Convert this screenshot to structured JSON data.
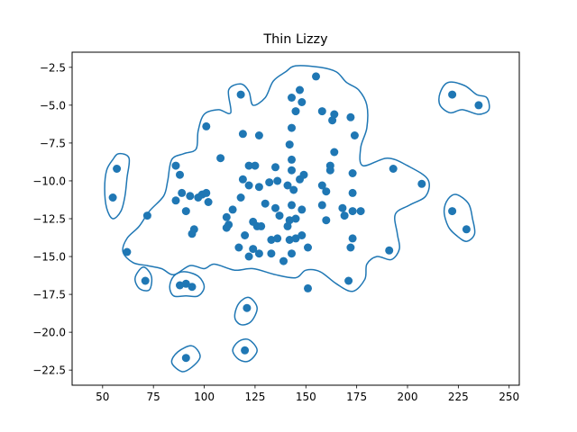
{
  "chart_data": {
    "type": "scatter",
    "title": "Thin Lizzy",
    "xlabel": "",
    "ylabel": "",
    "xlim": [
      35,
      255
    ],
    "ylim": [
      -23.5,
      -1.5
    ],
    "xticks": [
      50,
      75,
      100,
      125,
      150,
      175,
      200,
      225,
      250
    ],
    "yticks": [
      -22.5,
      -20.0,
      -17.5,
      -15.0,
      -12.5,
      -10.0,
      -7.5,
      -5.0,
      -2.5
    ],
    "xtick_labels": [
      "50",
      "75",
      "100",
      "125",
      "150",
      "175",
      "200",
      "225",
      "250"
    ],
    "ytick_labels": [
      "−22.5",
      "−20.0",
      "−17.5",
      "−15.0",
      "−12.5",
      "−10.0",
      "−7.5",
      "−5.0",
      "−2.5"
    ],
    "grid": false,
    "marker_color": "#1f77b4",
    "contour_color": "#1f77b4",
    "points": [
      [
        155,
        -3.1
      ],
      [
        147,
        -4.0
      ],
      [
        118,
        -4.3
      ],
      [
        143,
        -4.5
      ],
      [
        148,
        -4.8
      ],
      [
        222,
        -4.3
      ],
      [
        235,
        -5.0
      ],
      [
        158,
        -5.4
      ],
      [
        145,
        -5.4
      ],
      [
        164,
        -5.6
      ],
      [
        172,
        -5.8
      ],
      [
        163,
        -6.0
      ],
      [
        101,
        -6.4
      ],
      [
        143,
        -6.5
      ],
      [
        119,
        -6.9
      ],
      [
        127,
        -7.0
      ],
      [
        174,
        -7.0
      ],
      [
        142,
        -7.6
      ],
      [
        164,
        -8.1
      ],
      [
        108,
        -8.5
      ],
      [
        143,
        -8.6
      ],
      [
        86,
        -9.0
      ],
      [
        122,
        -9.0
      ],
      [
        125,
        -9.0
      ],
      [
        135,
        -9.1
      ],
      [
        162,
        -9.0
      ],
      [
        57,
        -9.2
      ],
      [
        193,
        -9.2
      ],
      [
        143,
        -9.3
      ],
      [
        162,
        -9.3
      ],
      [
        88,
        -9.6
      ],
      [
        173,
        -9.5
      ],
      [
        119,
        -9.9
      ],
      [
        147,
        -9.9
      ],
      [
        149,
        -9.6
      ],
      [
        132,
        -10.1
      ],
      [
        136,
        -10.0
      ],
      [
        122,
        -10.3
      ],
      [
        127,
        -10.4
      ],
      [
        141,
        -10.3
      ],
      [
        144,
        -10.6
      ],
      [
        158,
        -10.3
      ],
      [
        207,
        -10.2
      ],
      [
        89,
        -10.8
      ],
      [
        99,
        -10.9
      ],
      [
        101,
        -10.8
      ],
      [
        160,
        -10.7
      ],
      [
        173,
        -10.8
      ],
      [
        55,
        -11.1
      ],
      [
        86,
        -11.3
      ],
      [
        93,
        -11.0
      ],
      [
        97,
        -11.1
      ],
      [
        102,
        -11.4
      ],
      [
        118,
        -11.1
      ],
      [
        130,
        -11.5
      ],
      [
        143,
        -11.6
      ],
      [
        158,
        -11.6
      ],
      [
        91,
        -12.0
      ],
      [
        114,
        -11.9
      ],
      [
        135,
        -11.8
      ],
      [
        148,
        -11.9
      ],
      [
        168,
        -11.8
      ],
      [
        173,
        -12.0
      ],
      [
        177,
        -12.0
      ],
      [
        222,
        -12.0
      ],
      [
        72,
        -12.3
      ],
      [
        111,
        -12.4
      ],
      [
        137,
        -12.3
      ],
      [
        142,
        -12.6
      ],
      [
        169,
        -12.3
      ],
      [
        112,
        -12.9
      ],
      [
        124,
        -12.7
      ],
      [
        145,
        -12.5
      ],
      [
        160,
        -12.6
      ],
      [
        126,
        -13.0
      ],
      [
        111,
        -13.1
      ],
      [
        95,
        -13.2
      ],
      [
        128,
        -13.0
      ],
      [
        141,
        -13.0
      ],
      [
        229,
        -13.2
      ],
      [
        94,
        -13.5
      ],
      [
        120,
        -13.6
      ],
      [
        133,
        -13.9
      ],
      [
        136,
        -13.8
      ],
      [
        142,
        -13.9
      ],
      [
        145,
        -13.8
      ],
      [
        148,
        -13.6
      ],
      [
        173,
        -13.8
      ],
      [
        117,
        -14.4
      ],
      [
        124,
        -14.5
      ],
      [
        151,
        -14.4
      ],
      [
        172,
        -14.4
      ],
      [
        62,
        -14.7
      ],
      [
        191,
        -14.6
      ],
      [
        133,
        -14.8
      ],
      [
        143,
        -14.8
      ],
      [
        122,
        -15.0
      ],
      [
        127,
        -14.8
      ],
      [
        139,
        -15.3
      ],
      [
        71,
        -16.6
      ],
      [
        171,
        -16.6
      ],
      [
        88,
        -16.9
      ],
      [
        91,
        -16.8
      ],
      [
        94,
        -17.0
      ],
      [
        151,
        -17.1
      ],
      [
        121,
        -18.4
      ],
      [
        120,
        -21.2
      ],
      [
        91,
        -21.7
      ]
    ],
    "contours": [
      [
        [
          145,
          -2.4
        ],
        [
          157,
          -2.5
        ],
        [
          165,
          -2.8
        ],
        [
          170,
          -3.5
        ],
        [
          176,
          -4.0
        ],
        [
          180,
          -5.0
        ],
        [
          180,
          -6.5
        ],
        [
          177,
          -7.8
        ],
        [
          178,
          -9.0
        ],
        [
          190,
          -8.5
        ],
        [
          200,
          -9.0
        ],
        [
          210,
          -9.9
        ],
        [
          209,
          -11.0
        ],
        [
          201,
          -11.6
        ],
        [
          194,
          -12.2
        ],
        [
          195,
          -13.5
        ],
        [
          196,
          -14.5
        ],
        [
          192,
          -15.2
        ],
        [
          185,
          -15.0
        ],
        [
          180,
          -15.5
        ],
        [
          179,
          -16.5
        ],
        [
          173,
          -17.3
        ],
        [
          165,
          -16.8
        ],
        [
          157,
          -16.0
        ],
        [
          150,
          -15.9
        ],
        [
          145,
          -16.4
        ],
        [
          135,
          -16.2
        ],
        [
          124,
          -15.8
        ],
        [
          115,
          -15.9
        ],
        [
          105,
          -15.5
        ],
        [
          100,
          -15.8
        ],
        [
          93,
          -15.6
        ],
        [
          85,
          -16.2
        ],
        [
          79,
          -15.8
        ],
        [
          72,
          -15.6
        ],
        [
          65,
          -15.4
        ],
        [
          60,
          -14.7
        ],
        [
          62,
          -13.8
        ],
        [
          68,
          -13.0
        ],
        [
          73,
          -12.0
        ],
        [
          80,
          -11.0
        ],
        [
          82,
          -10.0
        ],
        [
          84,
          -8.6
        ],
        [
          90,
          -8.2
        ],
        [
          96,
          -7.9
        ],
        [
          97,
          -6.7
        ],
        [
          100,
          -5.6
        ],
        [
          107,
          -5.3
        ],
        [
          113,
          -5.5
        ],
        [
          112,
          -4.0
        ],
        [
          118,
          -3.6
        ],
        [
          122,
          -4.1
        ],
        [
          124,
          -5.0
        ],
        [
          130,
          -4.5
        ],
        [
          134,
          -3.4
        ],
        [
          140,
          -2.8
        ],
        [
          145,
          -2.4
        ]
      ],
      [
        [
          220,
          -3.5
        ],
        [
          228,
          -3.7
        ],
        [
          234,
          -4.3
        ],
        [
          239,
          -4.5
        ],
        [
          240,
          -5.3
        ],
        [
          235,
          -5.6
        ],
        [
          227,
          -5.3
        ],
        [
          221,
          -5.5
        ],
        [
          216,
          -5.0
        ],
        [
          216,
          -4.2
        ],
        [
          220,
          -3.5
        ]
      ],
      [
        [
          58,
          -8.2
        ],
        [
          63,
          -8.5
        ],
        [
          62,
          -9.8
        ],
        [
          61,
          -11.0
        ],
        [
          59,
          -12.0
        ],
        [
          55,
          -12.5
        ],
        [
          52,
          -11.8
        ],
        [
          51,
          -10.5
        ],
        [
          52,
          -9.3
        ],
        [
          55,
          -8.6
        ],
        [
          58,
          -8.2
        ]
      ],
      [
        [
          224,
          -10.9
        ],
        [
          230,
          -11.5
        ],
        [
          232,
          -12.5
        ],
        [
          233,
          -13.5
        ],
        [
          229,
          -14.0
        ],
        [
          224,
          -13.6
        ],
        [
          220,
          -13.0
        ],
        [
          218,
          -12.0
        ],
        [
          220,
          -11.2
        ],
        [
          224,
          -10.9
        ]
      ],
      [
        [
          90,
          -16.0
        ],
        [
          97,
          -16.3
        ],
        [
          100,
          -17.0
        ],
        [
          97,
          -17.6
        ],
        [
          91,
          -17.6
        ],
        [
          85,
          -17.6
        ],
        [
          83,
          -17.0
        ],
        [
          85,
          -16.3
        ],
        [
          90,
          -16.0
        ]
      ],
      [
        [
          70,
          -15.7
        ],
        [
          74,
          -16.3
        ],
        [
          73,
          -17.2
        ],
        [
          68,
          -17.1
        ],
        [
          66,
          -16.4
        ],
        [
          70,
          -15.7
        ]
      ],
      [
        [
          122,
          -17.7
        ],
        [
          126,
          -18.4
        ],
        [
          123,
          -19.3
        ],
        [
          118,
          -19.5
        ],
        [
          115,
          -19.0
        ],
        [
          117,
          -18.1
        ],
        [
          122,
          -17.7
        ]
      ],
      [
        [
          122,
          -20.5
        ],
        [
          126,
          -21.2
        ],
        [
          122,
          -21.9
        ],
        [
          117,
          -21.8
        ],
        [
          114,
          -21.2
        ],
        [
          117,
          -20.6
        ],
        [
          122,
          -20.5
        ]
      ],
      [
        [
          94,
          -20.9
        ],
        [
          98,
          -21.6
        ],
        [
          94,
          -22.3
        ],
        [
          89,
          -22.6
        ],
        [
          84,
          -22.0
        ],
        [
          87,
          -21.3
        ],
        [
          94,
          -20.9
        ]
      ]
    ]
  }
}
